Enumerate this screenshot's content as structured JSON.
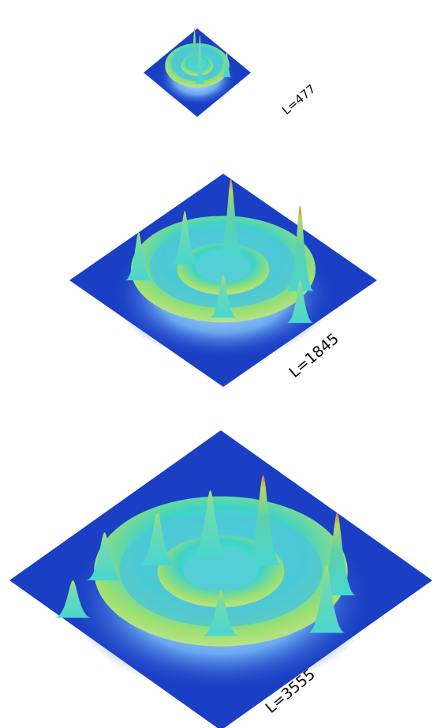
{
  "panels": [
    {
      "label": "L=477"
    },
    {
      "label": "L=1845"
    },
    {
      "label": "L=3555"
    }
  ]
}
